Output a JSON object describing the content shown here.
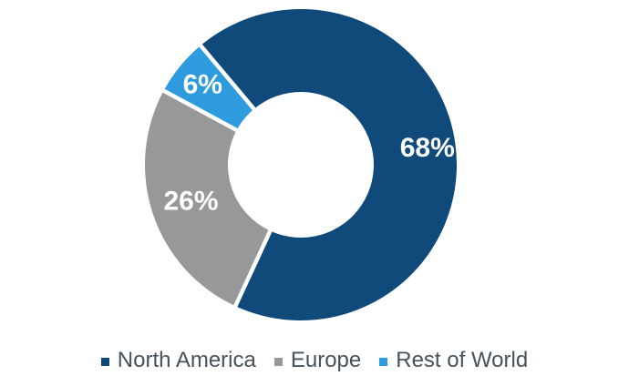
{
  "chart_data": {
    "type": "pie",
    "subtype": "donut",
    "title": "",
    "categories": [
      "North America",
      "Europe",
      "Rest of World"
    ],
    "values": [
      68,
      26,
      6
    ],
    "data_labels": [
      "68%",
      "26%",
      "6%"
    ],
    "colors": [
      "#0F4A7B",
      "#989898",
      "#2D9BDD"
    ],
    "label_color": "#FFFFFF",
    "start_angle_deg": -40,
    "hole_radius_ratio": 0.47,
    "legend_position": "bottom",
    "grid": false
  },
  "legend": {
    "items": [
      {
        "label": "North America",
        "color": "#0F4A7B"
      },
      {
        "label": "Europe",
        "color": "#989898"
      },
      {
        "label": "Rest of World",
        "color": "#2D9BDD"
      }
    ],
    "text_color": "#47525B"
  }
}
